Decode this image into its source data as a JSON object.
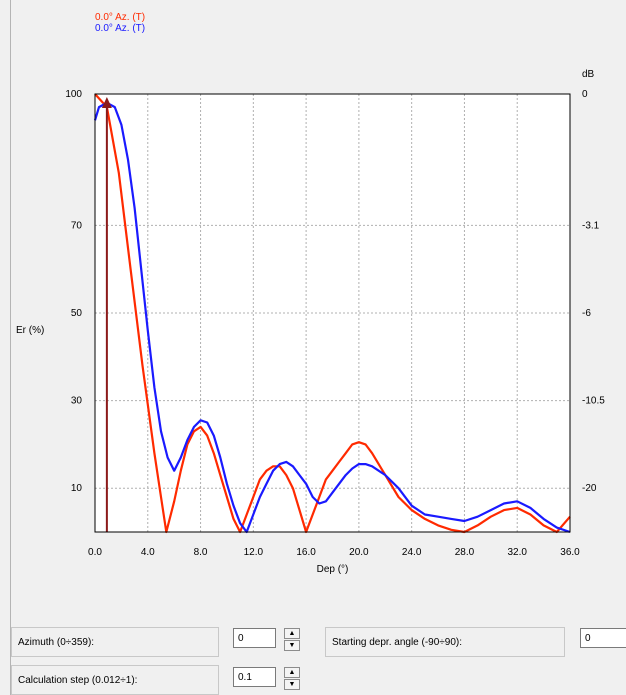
{
  "legend": [
    {
      "text": "0.0° Az. (T)",
      "color": "#ff2a00"
    },
    {
      "text": "0.0° Az. (T)",
      "color": "#1a1aff"
    }
  ],
  "chart_data": {
    "type": "line",
    "ylabel": "Er  (%)",
    "xlabel": "Dep (°)",
    "y2label": "dB",
    "xlim": [
      0,
      36
    ],
    "ylim": [
      0,
      100
    ],
    "x_ticks": [
      "0.0",
      "4.0",
      "8.0",
      "12.0",
      "16.0",
      "20.0",
      "24.0",
      "28.0",
      "32.0",
      "36.0"
    ],
    "x_tick_values": [
      0,
      4,
      8,
      12,
      16,
      20,
      24,
      28,
      32,
      36
    ],
    "y_ticks": [
      "10",
      "30",
      "50",
      "70",
      "100"
    ],
    "y_tick_values": [
      10,
      30,
      50,
      70,
      100
    ],
    "y2_ticks": [
      "0",
      "-3.1",
      "-6",
      "-10.5",
      "-20"
    ],
    "y2_tick_values": [
      100,
      70,
      50,
      30,
      10
    ],
    "grid": true,
    "marker_line_x": 0.9,
    "series": [
      {
        "color": "#ff2a00",
        "x": [
          0,
          0.9,
          1.8,
          2.7,
          3.6,
          4.5,
          5.0,
          5.4,
          6.0,
          6.5,
          7.0,
          7.5,
          8.0,
          8.5,
          9.0,
          9.5,
          10.0,
          10.5,
          11.0,
          11.5,
          12.0,
          12.5,
          13.0,
          13.5,
          14.0,
          14.5,
          15.0,
          15.5,
          16.0,
          16.5,
          17.0,
          17.5,
          18.0,
          18.5,
          19.0,
          19.5,
          20.0,
          20.5,
          21.0,
          22.0,
          23.0,
          24.0,
          25.0,
          26.0,
          27.0,
          28.0,
          29.0,
          30.0,
          31.0,
          32.0,
          33.0,
          34.0,
          35.0,
          36.0
        ],
        "values": [
          100,
          97,
          82,
          60,
          38,
          18,
          8,
          0,
          7,
          14,
          20,
          23,
          24,
          22,
          18,
          13,
          8,
          3,
          0,
          4,
          8,
          12,
          14,
          15,
          15,
          13,
          10,
          5,
          0,
          4,
          8,
          12,
          14,
          16,
          18,
          20,
          20.5,
          20,
          18,
          13,
          8,
          5,
          3,
          1.5,
          0.5,
          0,
          1.5,
          3.5,
          5,
          5.5,
          4,
          1.5,
          0,
          3.5
        ]
      },
      {
        "color": "#1a1aff",
        "x": [
          0,
          0.3,
          0.9,
          1.5,
          2.0,
          2.5,
          3.0,
          3.5,
          4.0,
          4.5,
          5.0,
          5.5,
          6.0,
          6.5,
          7.0,
          7.5,
          8.0,
          8.5,
          9.0,
          9.5,
          10.0,
          10.5,
          11.0,
          11.5,
          12.0,
          12.5,
          13.0,
          13.5,
          14.0,
          14.5,
          15.0,
          15.5,
          16.0,
          16.5,
          17.0,
          17.5,
          18.0,
          18.5,
          19.0,
          19.5,
          20.0,
          20.5,
          21.0,
          22.0,
          23.0,
          24.0,
          25.0,
          26.0,
          27.0,
          28.0,
          29.0,
          30.0,
          31.0,
          32.0,
          33.0,
          34.0,
          35.0,
          36.0
        ],
        "values": [
          94,
          97,
          98,
          97,
          93,
          85,
          74,
          60,
          46,
          33,
          23,
          17,
          14,
          17,
          21,
          24,
          25.5,
          25,
          22,
          17,
          11,
          6,
          2,
          0,
          4,
          8,
          11,
          14,
          15.5,
          16,
          15,
          13,
          11,
          8,
          6.5,
          7,
          9,
          11,
          13,
          14.5,
          15.5,
          15.5,
          15,
          13,
          10,
          6,
          4,
          3.5,
          3,
          2.5,
          3.5,
          5,
          6.5,
          7,
          5.5,
          3,
          1,
          0
        ]
      }
    ]
  },
  "form": {
    "azimuth_label": "Azimuth (0÷359):",
    "azimuth_value": "0",
    "calc_step_label": "Calculation step (0.012÷1):",
    "calc_step_value": "0.1",
    "start_depr_label": "Starting depr. angle (-90÷90):",
    "start_depr_value": "0",
    "spin_up": "▲",
    "spin_down": "▼"
  }
}
